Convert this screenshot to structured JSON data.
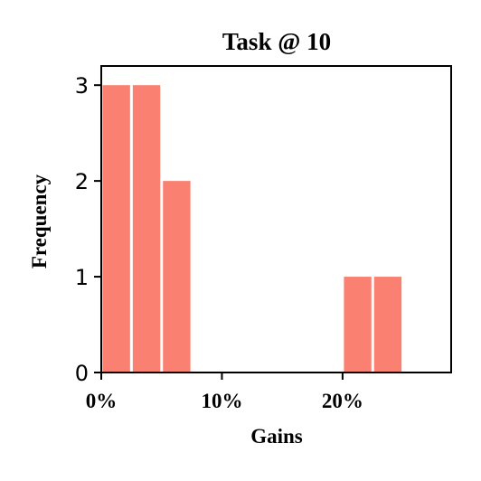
{
  "chart_data": {
    "type": "bar",
    "title": "Task @ 10",
    "xlabel": "Gains",
    "ylabel": "Frequency",
    "x_unit": "percent",
    "xlim": [
      0,
      29
    ],
    "ylim": [
      0,
      3.2
    ],
    "xticks": [
      {
        "value": 0,
        "label": "0%"
      },
      {
        "value": 10,
        "label": "10%"
      },
      {
        "value": 20,
        "label": "20%"
      }
    ],
    "yticks": [
      {
        "value": 0,
        "label": "0"
      },
      {
        "value": 1,
        "label": "1"
      },
      {
        "value": 2,
        "label": "2"
      },
      {
        "value": 3,
        "label": "3"
      }
    ],
    "bins": [
      {
        "start": 0,
        "end": 2.5,
        "count": 3
      },
      {
        "start": 2.5,
        "end": 5.0,
        "count": 3
      },
      {
        "start": 5.0,
        "end": 7.5,
        "count": 2
      },
      {
        "start": 20.0,
        "end": 22.5,
        "count": 1
      },
      {
        "start": 22.5,
        "end": 25.0,
        "count": 1
      }
    ],
    "bar_color": "#fa8072",
    "grid": false,
    "legend": false
  }
}
